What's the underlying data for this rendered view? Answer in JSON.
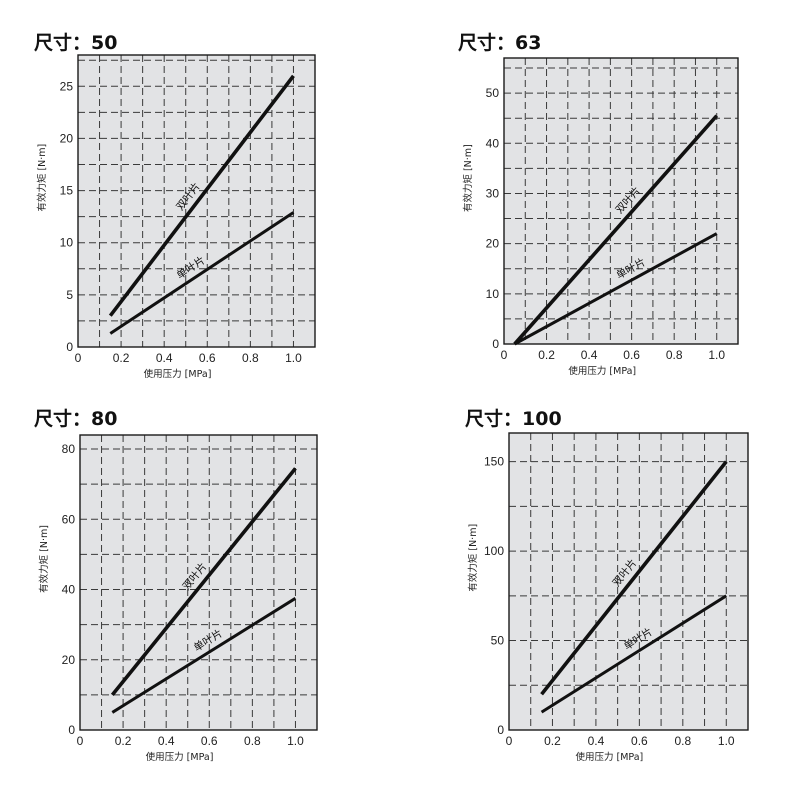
{
  "chart_data": [
    {
      "type": "line",
      "title": "尺寸：50",
      "xlabel": "使用压力 [MPa]",
      "ylabel": "有效力矩 [N·m]",
      "xlim": [
        0,
        1.1
      ],
      "ylim": [
        0,
        28
      ],
      "x_ticks": [
        "0",
        "0.2",
        "0.4",
        "0.6",
        "0.8",
        "1.0"
      ],
      "x_tick_values": [
        0,
        0.2,
        0.4,
        0.6,
        0.8,
        1.0
      ],
      "y_ticks": [
        "0",
        "5",
        "10",
        "15",
        "20",
        "25"
      ],
      "y_tick_values": [
        0,
        5,
        10,
        15,
        20,
        25
      ],
      "grid": true,
      "series": [
        {
          "name": "双叶片",
          "x": [
            0.15,
            1.0
          ],
          "y": [
            3.0,
            26.0
          ],
          "label_at": 0.55
        },
        {
          "name": "单叶片",
          "x": [
            0.15,
            1.0
          ],
          "y": [
            1.3,
            12.9
          ],
          "label_at": 0.55
        }
      ]
    },
    {
      "type": "line",
      "title": "尺寸：63",
      "xlabel": "使用压力 [MPa]",
      "ylabel": "有效力矩 [N·m]",
      "xlim": [
        0,
        1.1
      ],
      "ylim": [
        0,
        57
      ],
      "x_ticks": [
        "0",
        "0.2",
        "0.4",
        "0.6",
        "0.8",
        "1.0"
      ],
      "x_tick_values": [
        0,
        0.2,
        0.4,
        0.6,
        0.8,
        1.0
      ],
      "y_ticks": [
        "0",
        "10",
        "20",
        "30",
        "40",
        "50"
      ],
      "y_tick_values": [
        0,
        10,
        20,
        30,
        40,
        50
      ],
      "grid": true,
      "series": [
        {
          "name": "双叶片",
          "x": [
            0.05,
            1.0
          ],
          "y": [
            0,
            45.5
          ],
          "label_at": 0.62
        },
        {
          "name": "单叶片",
          "x": [
            0.05,
            1.0
          ],
          "y": [
            0,
            22.0
          ],
          "label_at": 0.62
        }
      ]
    },
    {
      "type": "line",
      "title": "尺寸：80",
      "xlabel": "使用压力 [MPa]",
      "ylabel": "有效力矩 [N·m]",
      "xlim": [
        0,
        1.1
      ],
      "ylim": [
        0,
        84
      ],
      "x_ticks": [
        "0",
        "0.2",
        "0.4",
        "0.6",
        "0.8",
        "1.0"
      ],
      "x_tick_values": [
        0,
        0.2,
        0.4,
        0.6,
        0.8,
        1.0
      ],
      "y_ticks": [
        "0",
        "20",
        "40",
        "60",
        "80"
      ],
      "y_tick_values": [
        0,
        20,
        40,
        60,
        80
      ],
      "grid": true,
      "series": [
        {
          "name": "双叶片",
          "x": [
            0.15,
            1.0
          ],
          "y": [
            10.0,
            74.5
          ],
          "label_at": 0.57
        },
        {
          "name": "单叶片",
          "x": [
            0.15,
            1.0
          ],
          "y": [
            5.0,
            37.5
          ],
          "label_at": 0.62
        }
      ]
    },
    {
      "type": "line",
      "title": "尺寸：100",
      "xlabel": "使用压力 [MPa]",
      "ylabel": "有效力矩 [N·m]",
      "xlim": [
        0,
        1.1
      ],
      "ylim": [
        0,
        166
      ],
      "x_ticks": [
        "0",
        "0.2",
        "0.4",
        "0.6",
        "0.8",
        "1.0"
      ],
      "x_tick_values": [
        0,
        0.2,
        0.4,
        0.6,
        0.8,
        1.0
      ],
      "y_ticks": [
        "0",
        "50",
        "100",
        "150"
      ],
      "y_tick_values": [
        0,
        50,
        100,
        150
      ],
      "grid": true,
      "series": [
        {
          "name": "双叶片",
          "x": [
            0.15,
            1.0
          ],
          "y": [
            20.0,
            150.0
          ],
          "label_at": 0.57
        },
        {
          "name": "单叶片",
          "x": [
            0.15,
            1.0
          ],
          "y": [
            10.0,
            75.0
          ],
          "label_at": 0.62
        }
      ]
    }
  ]
}
